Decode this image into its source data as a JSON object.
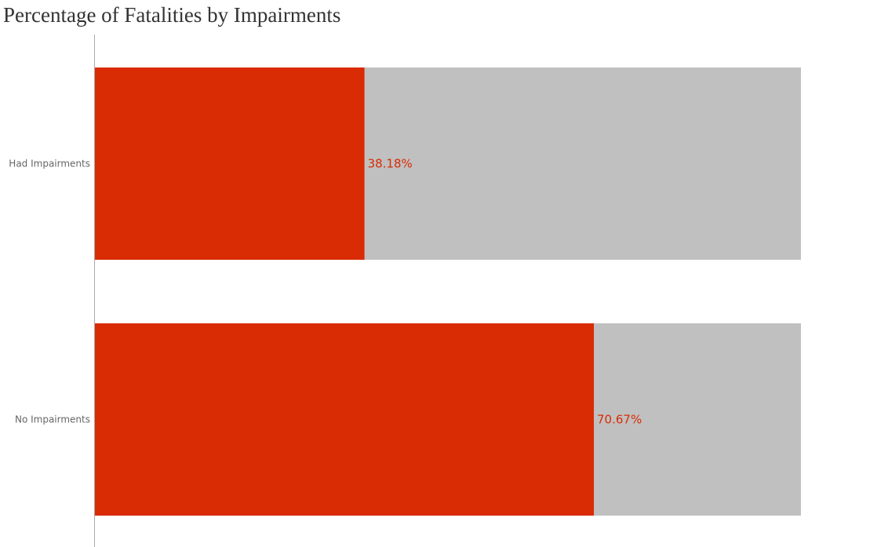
{
  "chart_data": {
    "type": "bar",
    "orientation": "horizontal",
    "title": "Percentage of Fatalities by Impairments",
    "xlabel": "",
    "ylabel": "",
    "categories": [
      "Had Impairments",
      "No Impairments"
    ],
    "values": [
      38.18,
      70.67
    ],
    "value_labels": [
      "38.18%",
      "70.67%"
    ],
    "xlim": [
      0,
      100
    ],
    "grid": false,
    "colors": {
      "value_bar": "#D92B04",
      "background_bar": "#C0C0C0",
      "value_label": "#D92B04",
      "axis_line": "#AAAAAA"
    }
  }
}
